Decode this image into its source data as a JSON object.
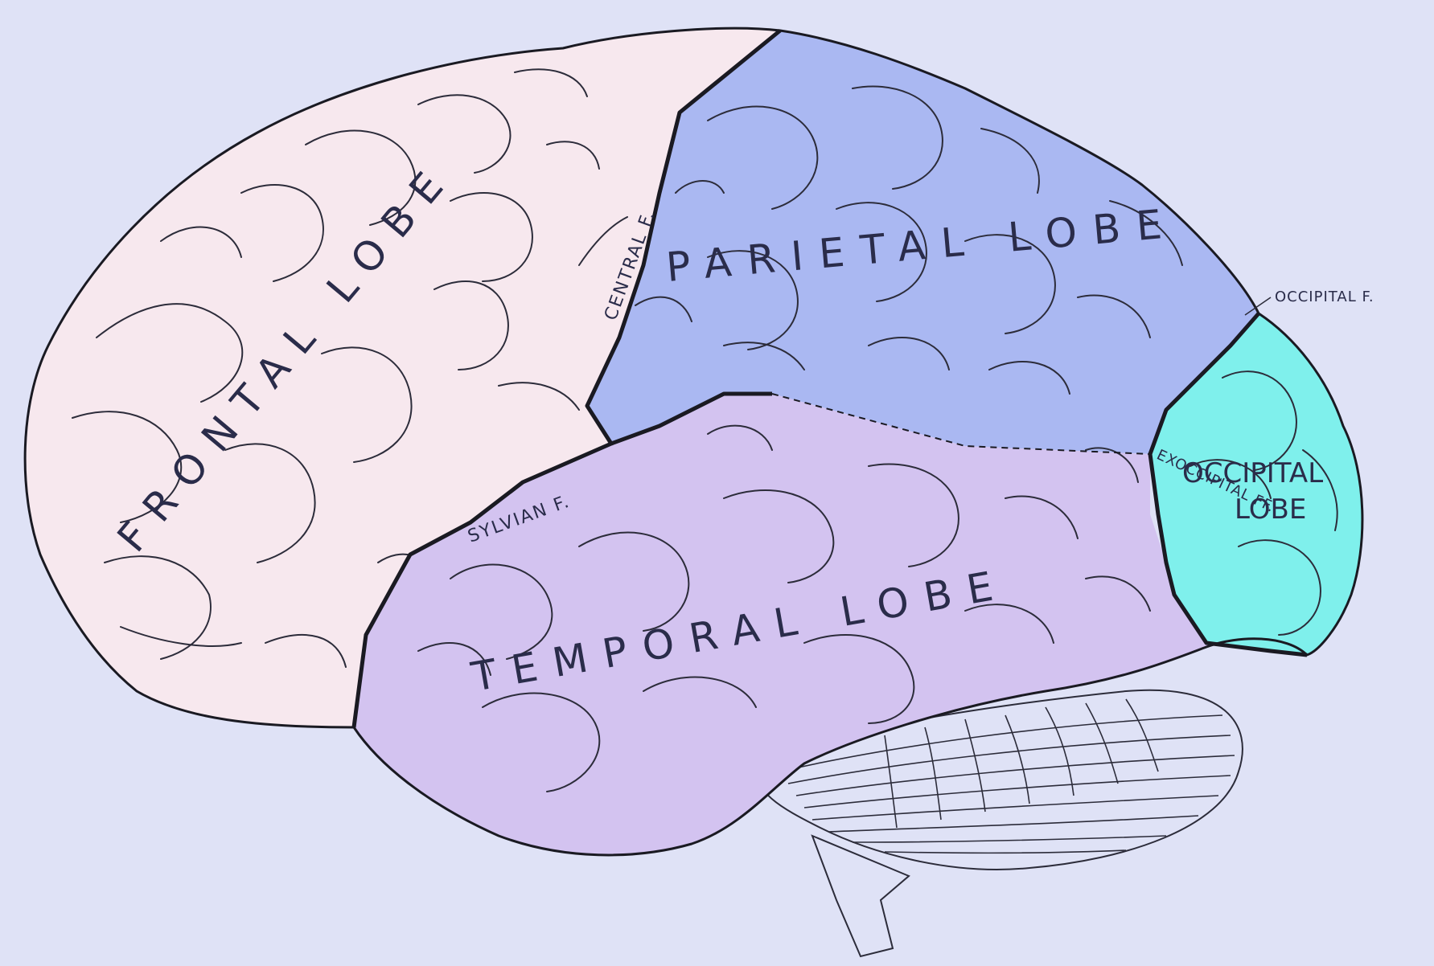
{
  "colors": {
    "background": "#dfe2f6",
    "frontal": "#f7e8ee",
    "parietal": "#aab8f2",
    "temporal": "#d3c3f0",
    "occipital": "#7ff0ec",
    "occipital_lower": "#e4c4e8",
    "cerebellum": "#dfe2f6"
  },
  "lobes": {
    "frontal": "FRONTAL LOBE",
    "parietal": "PARIETAL LOBE",
    "temporal": "TEMPORAL LOBE",
    "occipital_line1": "OCCIPITAL",
    "occipital_line2": "LOBE"
  },
  "fissures": {
    "central": "CENTRAL F.",
    "sylvian": "SYLVIAN F.",
    "occipital": "OCCIPITAL F.",
    "exoccipital": "EXOCCIPITAL FF."
  }
}
